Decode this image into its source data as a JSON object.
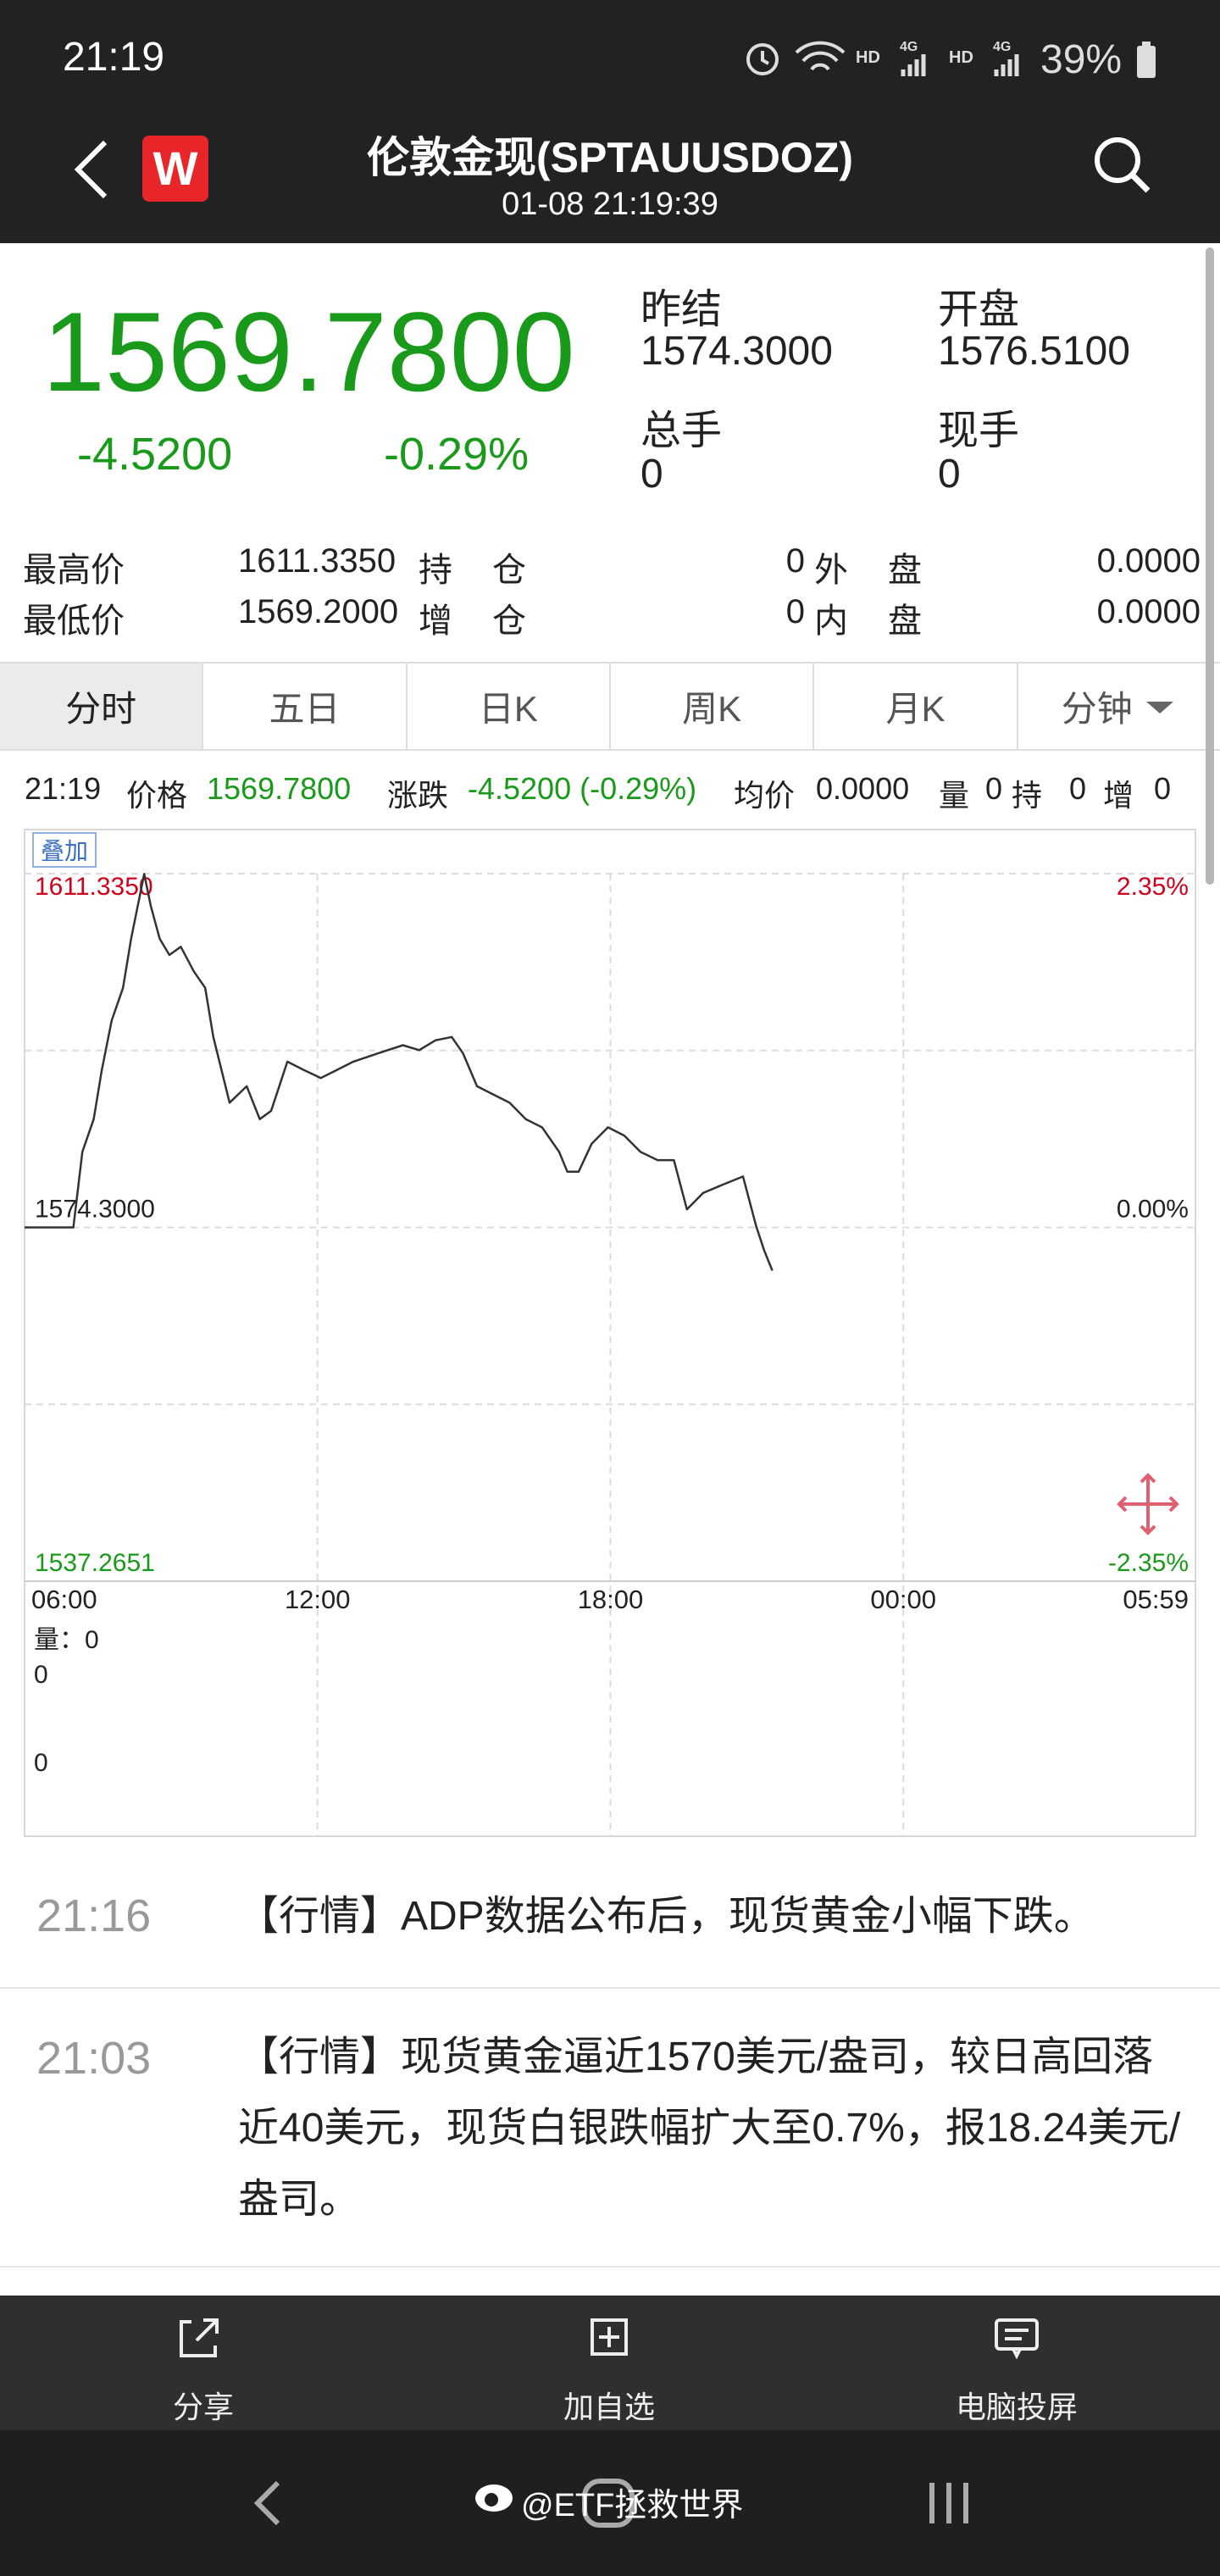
{
  "status_bar": {
    "time": "21:19",
    "network": [
      "HD",
      "4G",
      "HD",
      "4G"
    ],
    "battery": "39%"
  },
  "header": {
    "title": "伦敦金现(SPTAUUSDOZ)",
    "subtitle": "01-08 21:19:39",
    "logo": "W"
  },
  "quote": {
    "price": "1569.7800",
    "change": "-4.5200",
    "change_pct": "-0.29%",
    "stats": [
      {
        "label": "昨结",
        "value": "1574.3000"
      },
      {
        "label": "开盘",
        "value": "1576.5100"
      },
      {
        "label": "总手",
        "value": "0"
      },
      {
        "label": "现手",
        "value": "0"
      }
    ]
  },
  "details": {
    "rows": [
      [
        "最高价",
        "1611.3350",
        "持",
        "仓",
        "0",
        "外",
        "盘",
        "0.0000"
      ],
      [
        "最低价",
        "1569.2000",
        "增",
        "仓",
        "0",
        "内",
        "盘",
        "0.0000"
      ]
    ]
  },
  "tabs": [
    "分时",
    "五日",
    "日K",
    "周K",
    "月K",
    "分钟"
  ],
  "info_bar": [
    "21:19",
    "价格",
    "1569.7800",
    "涨跌",
    "-4.5200 (-0.29%)",
    "均价",
    "0.0000",
    "量",
    "0",
    "持",
    "0",
    "增",
    "0"
  ],
  "overlay_button": "叠加",
  "chart_data": {
    "type": "line",
    "color": "#333333",
    "up_color": "#d0021b",
    "down_color": "#1a9a1a",
    "x": [
      "06:00",
      "07:00",
      "07:11",
      "07:25",
      "07:35",
      "07:47",
      "08:01",
      "08:11",
      "08:27",
      "08:35",
      "08:46",
      "08:58",
      "09:12",
      "09:28",
      "09:42",
      "09:52",
      "10:02",
      "10:12",
      "10:33",
      "10:49",
      "11:03",
      "11:23",
      "11:43",
      "12:04",
      "12:24",
      "12:44",
      "13:14",
      "13:45",
      "14:05",
      "14:25",
      "14:45",
      "14:59",
      "15:16",
      "15:36",
      "15:56",
      "16:16",
      "16:36",
      "16:57",
      "17:07",
      "17:21",
      "17:37",
      "17:57",
      "18:17",
      "18:37",
      "18:58",
      "19:18",
      "19:34",
      "19:54",
      "20:18",
      "20:43",
      "20:59",
      "21:09",
      "21:19"
    ],
    "values": [
      1574.3,
      1574.3,
      1582.2,
      1585.64,
      1590.79,
      1595.95,
      1599.38,
      1604.54,
      1611.3,
      1607.98,
      1604.54,
      1602.82,
      1603.68,
      1601.1,
      1599.38,
      1594.23,
      1590.79,
      1587.36,
      1589.08,
      1585.64,
      1586.5,
      1591.65,
      1590.79,
      1589.94,
      1590.79,
      1591.65,
      1592.51,
      1593.37,
      1592.86,
      1593.89,
      1594.23,
      1592.51,
      1589.08,
      1588.22,
      1587.36,
      1585.64,
      1584.78,
      1582.2,
      1580.14,
      1580.14,
      1583.06,
      1584.78,
      1583.92,
      1582.2,
      1581.34,
      1581.34,
      1576.19,
      1577.91,
      1578.77,
      1579.63,
      1574.47,
      1571.89,
      1569.78
    ],
    "xlim": [
      "06:00",
      "05:59"
    ],
    "xticks": [
      "06:00",
      "12:00",
      "18:00",
      "00:00",
      "05:59"
    ],
    "ylim": [
      1537.2651,
      1611.335
    ],
    "yticks": [
      1537.2651,
      {
        "value": 1574.3,
        "label": "1574.3000"
      },
      {
        "value": 1611.335,
        "label": "1611.3350"
      }
    ],
    "y2lim": [
      -2.35,
      2.35
    ],
    "y2ticks": [
      {
        "value": -2.35,
        "label": "-2.35%"
      },
      {
        "value": 0,
        "label": "0.00%"
      },
      {
        "value": 2.35,
        "label": "2.35%"
      }
    ],
    "grid": true
  },
  "volume_panel": {
    "title": "量：0",
    "labels": [
      "0",
      "0"
    ]
  },
  "news": [
    {
      "time": "21:16",
      "text": "【行情】ADP数据公布后，现货黄金小幅下跌。"
    },
    {
      "time": "21:03",
      "text": "【行情】现货黄金逼近1570美元/盎司，较日高回落近40美元，现货白银跌幅扩大至0.7%，报18.24美元/盎司。"
    }
  ],
  "toolbar": [
    "分享",
    "加自选",
    "电脑投屏"
  ],
  "watermark": "@ETF拯救世界"
}
